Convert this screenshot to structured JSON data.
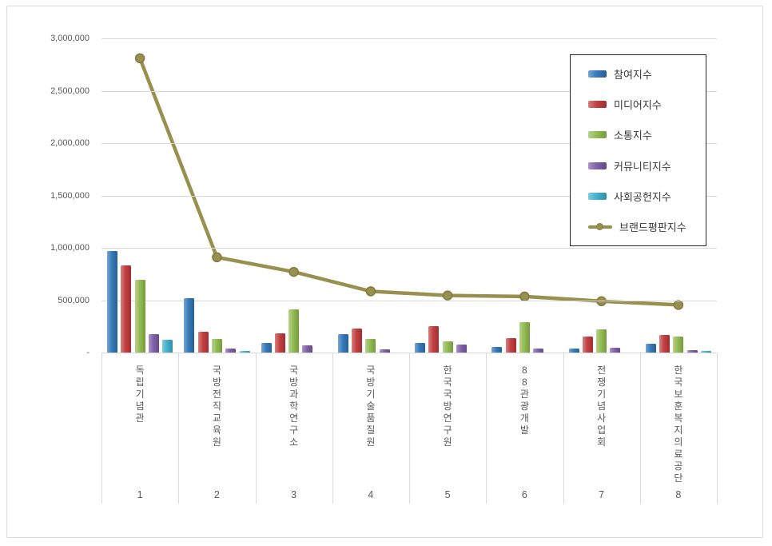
{
  "frame": {
    "border_color": "#d9d9d9",
    "background": "#ffffff"
  },
  "legend": {
    "border_color": "#262626",
    "position": "upper right"
  },
  "text_color": "#595959",
  "chart_data": {
    "type": "bar",
    "subtype": "bar-line-combo",
    "categories": [
      "독립기념관",
      "국방전직교육원",
      "국방과학연구소",
      "국방기술품질원",
      "한국국방연구원",
      "88관광개발",
      "전쟁기념사업회",
      "한국보훈복지의료공단"
    ],
    "category_ranks": [
      "1",
      "2",
      "3",
      "4",
      "5",
      "6",
      "7",
      "8"
    ],
    "series": [
      {
        "id": "participation-index",
        "name": "참여지수",
        "type": "bar",
        "color": "#2e75b6",
        "values": [
          970000,
          520000,
          95000,
          175000,
          90000,
          55000,
          35000,
          85000
        ]
      },
      {
        "id": "media-index",
        "name": "미디어지수",
        "type": "bar",
        "color": "#c0393b",
        "values": [
          830000,
          200000,
          180000,
          230000,
          255000,
          135000,
          155000,
          170000
        ]
      },
      {
        "id": "communication-index",
        "name": "소통지수",
        "type": "bar",
        "color": "#8fba4c",
        "values": [
          695000,
          130000,
          410000,
          130000,
          110000,
          290000,
          225000,
          150000
        ]
      },
      {
        "id": "community-index",
        "name": "커뮤니티지수",
        "type": "bar",
        "color": "#7a5ba5",
        "values": [
          175000,
          40000,
          70000,
          30000,
          75000,
          35000,
          45000,
          25000
        ]
      },
      {
        "id": "social-contribution-index",
        "name": "사회공헌지수",
        "type": "bar",
        "color": "#3aafc9",
        "values": [
          120000,
          15000,
          0,
          0,
          0,
          0,
          0,
          15000
        ]
      },
      {
        "id": "brand-reputation-index",
        "name": "브랜드평판지수",
        "type": "line",
        "color": "#98904f",
        "marker_stroke": "#827a40",
        "values": [
          2810000,
          910000,
          770000,
          585000,
          545000,
          535000,
          490000,
          455000
        ]
      }
    ],
    "ylim": [
      0,
      3000000
    ],
    "ytick_step": 500000,
    "ytick_labels": [
      "3,000,000",
      "2,500,000",
      "2,000,000",
      "1,500,000",
      "1,000,000",
      "500,000",
      "-"
    ],
    "grid": true,
    "legend_position": "upper right"
  }
}
